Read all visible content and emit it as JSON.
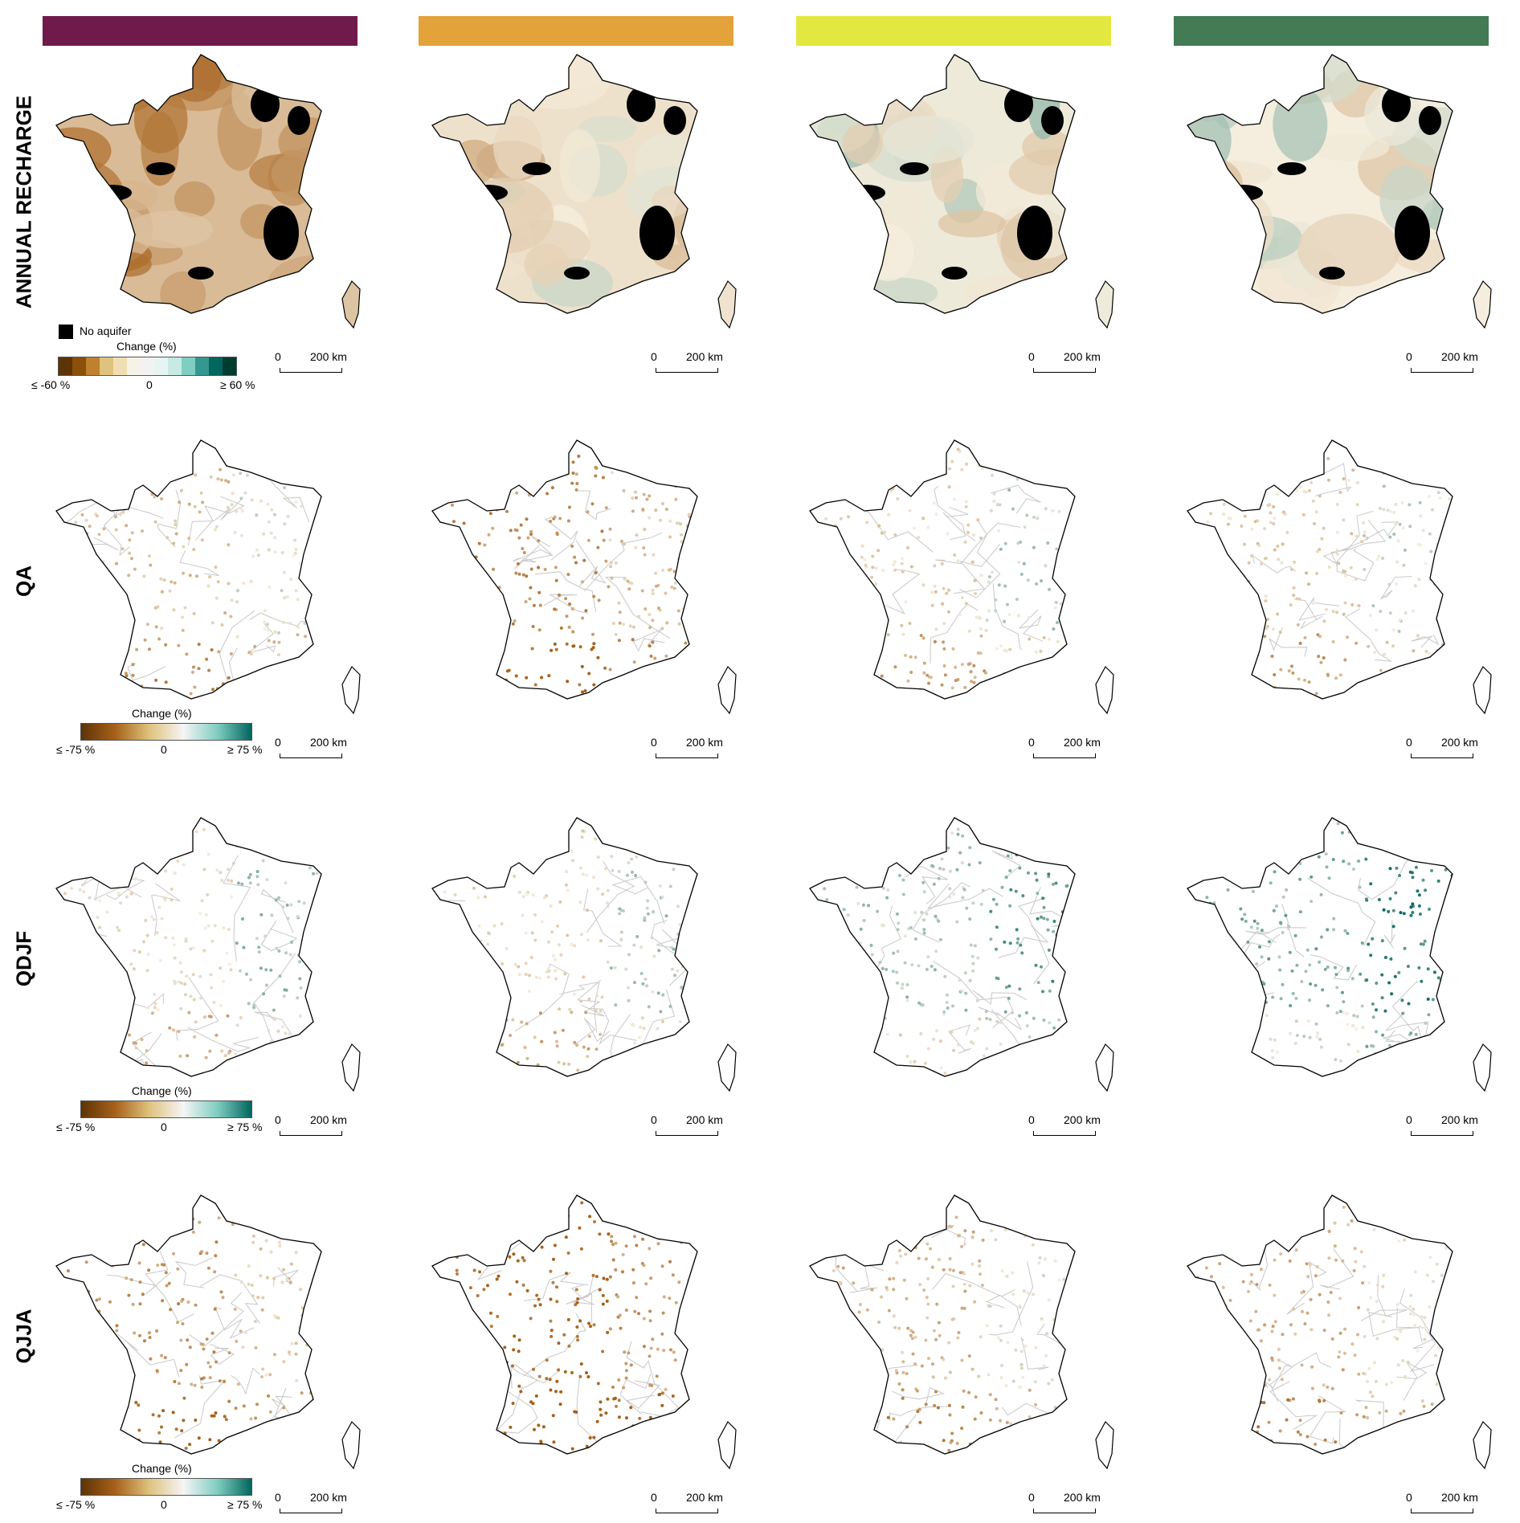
{
  "scenario_colors": [
    "#6f1a4a",
    "#e3a23a",
    "#e3e840",
    "#437b54"
  ],
  "rows": [
    {
      "label": "ANNUAL RECHARGE",
      "type": "polygon",
      "legend": "discrete"
    },
    {
      "label": "QA",
      "type": "points",
      "legend": "gradient"
    },
    {
      "label": "QDJF",
      "type": "points",
      "legend": "gradient"
    },
    {
      "label": "QJJA",
      "type": "points",
      "legend": "gradient"
    }
  ],
  "scalebar": {
    "zero": "0",
    "distance": "200 km"
  },
  "legend_recharge": {
    "no_aquifer": "No aquifer",
    "title": "Change (%)",
    "min": "≤ -60 %",
    "mid": "0",
    "max": "≥ 60 %",
    "colors": [
      "#5e3305",
      "#8b510a",
      "#bf812d",
      "#dfc27d",
      "#f0deb3",
      "#f6f2e8",
      "#f2f2f2",
      "#e6f5f3",
      "#c7eae5",
      "#80cdc1",
      "#35978f",
      "#01665e",
      "#003c30"
    ]
  },
  "legend_discharge": {
    "title": "Change (%)",
    "min": "≤ -75 %",
    "mid": "0",
    "max": "≥ 75 %",
    "colors": [
      "#5e3305",
      "#a6611a",
      "#dfc27d",
      "#f5f5f5",
      "#80cdc1",
      "#01665e"
    ]
  },
  "map_tint_levels": [
    [
      -0.6,
      -0.15,
      0.05,
      0.0
    ],
    [
      -0.2,
      -0.55,
      -0.05,
      -0.1
    ],
    [
      0.05,
      0.0,
      0.35,
      0.55
    ],
    [
      -0.5,
      -0.85,
      -0.25,
      -0.3
    ]
  ]
}
